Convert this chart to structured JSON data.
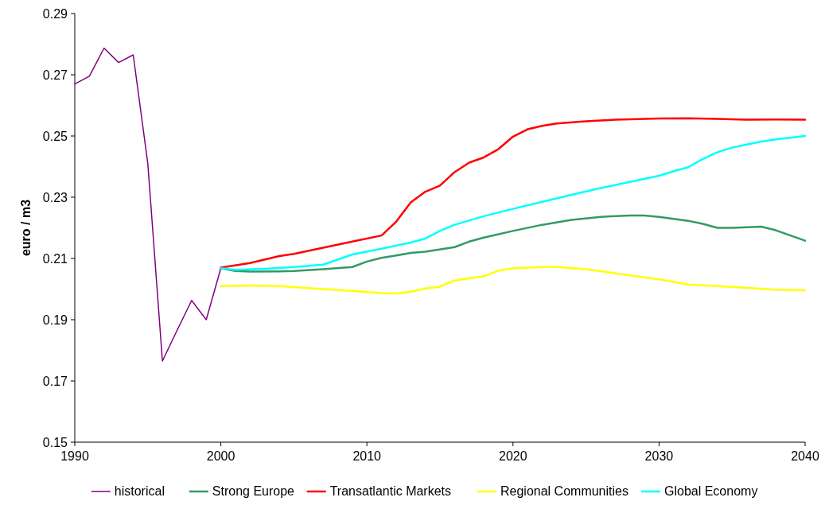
{
  "chart_data": {
    "type": "line",
    "ylabel": "euro / m3",
    "xlim": [
      1990,
      2040
    ],
    "xticks": [
      1990,
      2000,
      2010,
      2020,
      2030,
      2040
    ],
    "ylim": [
      0.15,
      0.29
    ],
    "yticks": [
      {
        "value": 0.15,
        "label": "0.15"
      },
      {
        "value": 0.17,
        "label": "0.17"
      },
      {
        "value": 0.19,
        "label": "0.19"
      },
      {
        "value": 0.21,
        "label": "0.21"
      },
      {
        "value": 0.23,
        "label": "0.23"
      },
      {
        "value": 0.25,
        "label": "0.25"
      },
      {
        "value": 0.27,
        "label": "0.27"
      },
      {
        "value": 0.29,
        "label": "0.29"
      }
    ],
    "grid": false,
    "legend": "bottom",
    "marker": "none",
    "line_style": "solid",
    "series": [
      {
        "name": "historical",
        "color": "#800080",
        "x": [
          1990,
          1991,
          1992,
          1993,
          1994,
          1995,
          1996,
          1997,
          1998,
          1999,
          2000
        ],
        "values": [
          0.267,
          0.2695,
          0.2787,
          0.274,
          0.2765,
          0.241,
          0.1765,
          0.1865,
          0.1963,
          0.19,
          0.2068
        ]
      },
      {
        "name": "Strong Europe",
        "color": "#339966",
        "x": [
          2000,
          2001,
          2002,
          2004,
          2005,
          2007,
          2009,
          2010,
          2011,
          2012,
          2013,
          2014,
          2016,
          2017,
          2018,
          2020,
          2022,
          2024,
          2026,
          2028,
          2029,
          2030,
          2032,
          2033,
          2034,
          2035,
          2037,
          2038,
          2040
        ],
        "values": [
          0.2068,
          0.2059,
          0.2057,
          0.2058,
          0.2059,
          0.2065,
          0.2072,
          0.209,
          0.2102,
          0.211,
          0.2118,
          0.2122,
          0.2137,
          0.2155,
          0.2168,
          0.219,
          0.221,
          0.2226,
          0.2236,
          0.224,
          0.224,
          0.2236,
          0.2223,
          0.2213,
          0.22,
          0.22,
          0.2204,
          0.2192,
          0.2158
        ]
      },
      {
        "name": "Transatlantic Markets",
        "color": "#ff0000",
        "x": [
          2000,
          2002,
          2004,
          2005,
          2007,
          2009,
          2011,
          2012,
          2013,
          2014,
          2015,
          2016,
          2017,
          2018,
          2019,
          2020,
          2021,
          2022,
          2023,
          2025,
          2027,
          2030,
          2032,
          2034,
          2036,
          2038,
          2040
        ],
        "values": [
          0.207,
          0.2085,
          0.2108,
          0.2115,
          0.2135,
          0.2155,
          0.2175,
          0.222,
          0.2283,
          0.2318,
          0.2338,
          0.2382,
          0.2413,
          0.243,
          0.2457,
          0.2498,
          0.2522,
          0.2533,
          0.2541,
          0.2548,
          0.2553,
          0.2557,
          0.2558,
          0.2556,
          0.2553,
          0.2554,
          0.2553
        ]
      },
      {
        "name": "Regional Communities",
        "color": "#ffff00",
        "x": [
          2000,
          2002,
          2004,
          2007,
          2009,
          2011,
          2012,
          2013,
          2014,
          2015,
          2016,
          2018,
          2019,
          2020,
          2022,
          2023,
          2025,
          2028,
          2030,
          2032,
          2035,
          2038,
          2040
        ],
        "values": [
          0.201,
          0.2012,
          0.201,
          0.2,
          0.1994,
          0.1987,
          0.1986,
          0.1991,
          0.2002,
          0.2008,
          0.2028,
          0.2042,
          0.206,
          0.2068,
          0.2072,
          0.2072,
          0.2065,
          0.2045,
          0.2032,
          0.2015,
          0.2007,
          0.1998,
          0.1996
        ]
      },
      {
        "name": "Global Economy",
        "color": "#00ffff",
        "x": [
          2000,
          2001,
          2003,
          2005,
          2007,
          2009,
          2011,
          2013,
          2014,
          2015,
          2016,
          2018,
          2020,
          2022,
          2024,
          2026,
          2028,
          2030,
          2031,
          2032,
          2033,
          2034,
          2035,
          2036,
          2037,
          2038,
          2040
        ],
        "values": [
          0.2068,
          0.2063,
          0.2066,
          0.2072,
          0.208,
          0.2113,
          0.2132,
          0.2152,
          0.2165,
          0.219,
          0.221,
          0.2238,
          0.2262,
          0.2285,
          0.2308,
          0.233,
          0.235,
          0.237,
          0.2385,
          0.2398,
          0.2425,
          0.2447,
          0.2462,
          0.2472,
          0.2482,
          0.2489,
          0.25
        ]
      }
    ]
  }
}
